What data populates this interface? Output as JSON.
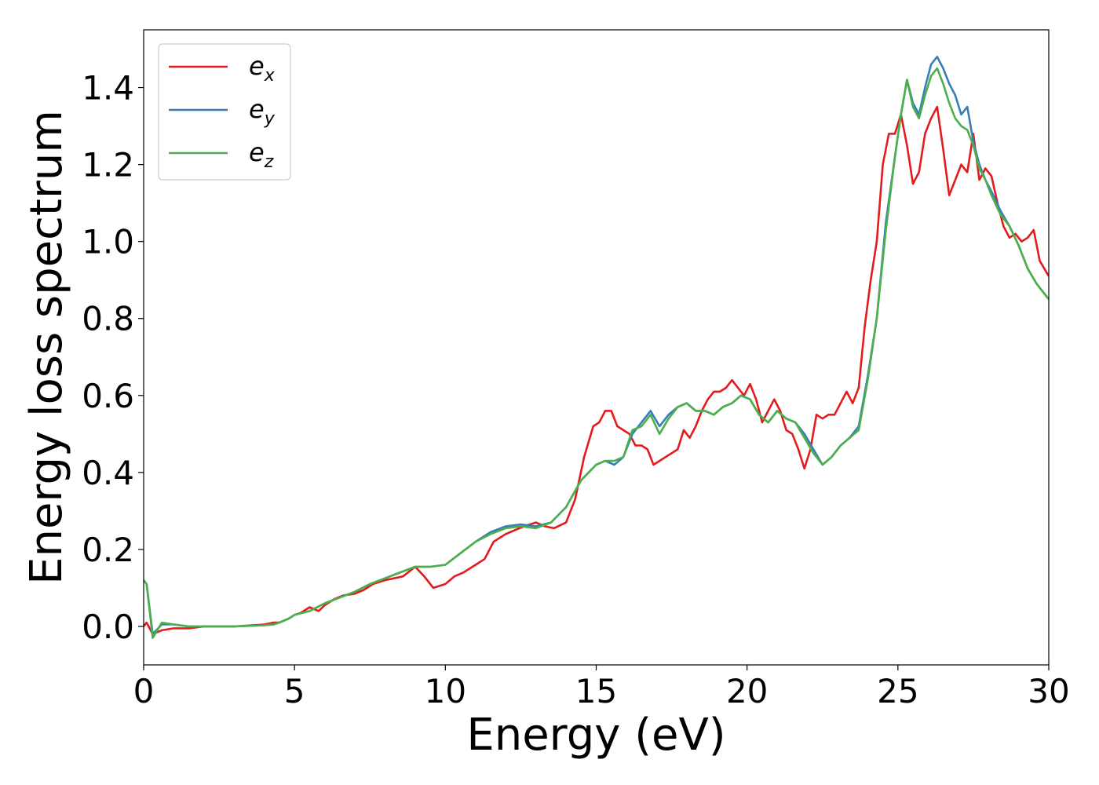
{
  "chart_data": {
    "type": "line",
    "xlabel": "Energy (eV)",
    "ylabel": "Energy loss spectrum",
    "xlim": [
      0,
      30
    ],
    "ylim": [
      -0.1,
      1.55
    ],
    "xticks": [
      0,
      5,
      10,
      15,
      20,
      25,
      30
    ],
    "xtick_labels": [
      "0",
      "5",
      "10",
      "15",
      "20",
      "25",
      "30"
    ],
    "yticks": [
      0.0,
      0.2,
      0.4,
      0.6,
      0.8,
      1.0,
      1.2,
      1.4
    ],
    "ytick_labels": [
      "0.0",
      "0.2",
      "0.4",
      "0.6",
      "0.8",
      "1.0",
      "1.2",
      "1.4"
    ],
    "grid": false,
    "legend_position": "top-left",
    "series": [
      {
        "name": "e_x",
        "label_base": "e",
        "label_sub": "x",
        "color": "#e41a1c",
        "x": [
          0,
          0.1,
          0.3,
          0.6,
          1.0,
          1.5,
          2,
          3,
          4,
          4.3,
          4.5,
          4.8,
          5.0,
          5.2,
          5.5,
          5.8,
          6.0,
          6.3,
          6.6,
          7.0,
          7.3,
          7.6,
          8.0,
          8.3,
          8.6,
          9.0,
          9.3,
          9.6,
          10.0,
          10.3,
          10.6,
          11.0,
          11.3,
          11.6,
          12.0,
          12.3,
          12.6,
          13.0,
          13.3,
          13.6,
          14.0,
          14.3,
          14.6,
          14.9,
          15.1,
          15.3,
          15.5,
          15.7,
          15.9,
          16.1,
          16.3,
          16.5,
          16.7,
          16.9,
          17.1,
          17.3,
          17.5,
          17.7,
          17.9,
          18.1,
          18.3,
          18.5,
          18.7,
          18.9,
          19.1,
          19.3,
          19.5,
          19.7,
          19.9,
          20.1,
          20.3,
          20.5,
          20.7,
          20.9,
          21.1,
          21.3,
          21.5,
          21.7,
          21.9,
          22.1,
          22.3,
          22.5,
          22.7,
          22.9,
          23.1,
          23.3,
          23.5,
          23.7,
          23.9,
          24.1,
          24.3,
          24.5,
          24.7,
          24.9,
          25.1,
          25.3,
          25.5,
          25.7,
          25.9,
          26.1,
          26.3,
          26.5,
          26.7,
          26.9,
          27.1,
          27.3,
          27.5,
          27.7,
          27.9,
          28.1,
          28.3,
          28.5,
          28.7,
          28.9,
          29.1,
          29.3,
          29.5,
          29.7,
          30.0
        ],
        "y": [
          0.0,
          0.01,
          -0.02,
          -0.01,
          -0.005,
          -0.005,
          0.0,
          0.0,
          0.005,
          0.01,
          0.01,
          0.02,
          0.03,
          0.035,
          0.05,
          0.04,
          0.055,
          0.07,
          0.08,
          0.085,
          0.095,
          0.11,
          0.12,
          0.125,
          0.13,
          0.155,
          0.13,
          0.1,
          0.11,
          0.13,
          0.14,
          0.16,
          0.175,
          0.22,
          0.24,
          0.25,
          0.26,
          0.27,
          0.26,
          0.255,
          0.27,
          0.33,
          0.44,
          0.52,
          0.53,
          0.56,
          0.56,
          0.52,
          0.51,
          0.5,
          0.47,
          0.47,
          0.46,
          0.42,
          0.43,
          0.44,
          0.45,
          0.46,
          0.51,
          0.49,
          0.52,
          0.56,
          0.59,
          0.61,
          0.61,
          0.62,
          0.64,
          0.62,
          0.6,
          0.63,
          0.59,
          0.53,
          0.56,
          0.59,
          0.56,
          0.51,
          0.5,
          0.46,
          0.41,
          0.46,
          0.55,
          0.54,
          0.55,
          0.55,
          0.58,
          0.61,
          0.58,
          0.62,
          0.78,
          0.9,
          1.0,
          1.2,
          1.28,
          1.28,
          1.33,
          1.25,
          1.15,
          1.18,
          1.28,
          1.32,
          1.35,
          1.24,
          1.12,
          1.16,
          1.2,
          1.18,
          1.28,
          1.16,
          1.19,
          1.17,
          1.1,
          1.04,
          1.01,
          1.02,
          1.0,
          1.01,
          1.03,
          0.95,
          0.91
        ]
      },
      {
        "name": "e_y",
        "label_base": "e",
        "label_sub": "y",
        "color": "#377eb8",
        "x": [
          0,
          0.1,
          0.3,
          0.6,
          1.0,
          1.5,
          2,
          3,
          4,
          4.3,
          4.5,
          4.8,
          5.0,
          5.5,
          6.0,
          6.5,
          7.0,
          7.5,
          8.0,
          8.5,
          9.0,
          9.5,
          10.0,
          10.5,
          11.0,
          11.5,
          12.0,
          12.5,
          13.0,
          13.5,
          14.0,
          14.5,
          15.0,
          15.3,
          15.6,
          15.9,
          16.2,
          16.5,
          16.8,
          17.1,
          17.4,
          17.7,
          18.0,
          18.3,
          18.6,
          18.9,
          19.2,
          19.5,
          19.8,
          20.1,
          20.4,
          20.7,
          21.0,
          21.3,
          21.6,
          21.9,
          22.2,
          22.5,
          22.8,
          23.1,
          23.4,
          23.7,
          24.0,
          24.3,
          24.6,
          24.9,
          25.1,
          25.3,
          25.5,
          25.7,
          25.9,
          26.1,
          26.3,
          26.5,
          26.7,
          26.9,
          27.1,
          27.3,
          27.5,
          27.7,
          27.9,
          28.1,
          28.4,
          28.7,
          29.0,
          29.3,
          29.6,
          30.0
        ],
        "y": [
          0.12,
          0.11,
          -0.02,
          0.005,
          0.005,
          0.0,
          0.0,
          0.0,
          0.003,
          0.005,
          0.01,
          0.02,
          0.03,
          0.04,
          0.06,
          0.075,
          0.09,
          0.11,
          0.125,
          0.14,
          0.155,
          0.155,
          0.16,
          0.19,
          0.22,
          0.245,
          0.26,
          0.265,
          0.26,
          0.27,
          0.31,
          0.38,
          0.42,
          0.43,
          0.42,
          0.44,
          0.5,
          0.53,
          0.56,
          0.52,
          0.55,
          0.57,
          0.58,
          0.56,
          0.56,
          0.55,
          0.57,
          0.58,
          0.6,
          0.59,
          0.55,
          0.53,
          0.56,
          0.54,
          0.53,
          0.5,
          0.46,
          0.42,
          0.44,
          0.47,
          0.49,
          0.52,
          0.65,
          0.8,
          1.05,
          1.22,
          1.33,
          1.42,
          1.36,
          1.33,
          1.4,
          1.46,
          1.48,
          1.45,
          1.41,
          1.38,
          1.33,
          1.35,
          1.26,
          1.2,
          1.16,
          1.13,
          1.08,
          1.04,
          0.99,
          0.93,
          0.89,
          0.85
        ]
      },
      {
        "name": "e_z",
        "label_base": "e",
        "label_sub": "z",
        "color": "#4daf4a",
        "x": [
          0,
          0.1,
          0.3,
          0.6,
          1.0,
          1.5,
          2,
          3,
          4,
          4.3,
          4.5,
          4.8,
          5.0,
          5.5,
          6.0,
          6.5,
          7.0,
          7.5,
          8.0,
          8.5,
          9.0,
          9.5,
          10.0,
          10.5,
          11.0,
          11.5,
          12.0,
          12.5,
          13.0,
          13.5,
          14.0,
          14.5,
          15.0,
          15.3,
          15.6,
          15.9,
          16.2,
          16.5,
          16.8,
          17.1,
          17.4,
          17.7,
          18.0,
          18.3,
          18.6,
          18.9,
          19.2,
          19.5,
          19.8,
          20.1,
          20.4,
          20.7,
          21.0,
          21.3,
          21.6,
          21.9,
          22.2,
          22.5,
          22.8,
          23.1,
          23.4,
          23.7,
          24.0,
          24.3,
          24.6,
          24.9,
          25.1,
          25.3,
          25.5,
          25.7,
          25.9,
          26.1,
          26.3,
          26.5,
          26.7,
          26.9,
          27.1,
          27.3,
          27.5,
          27.7,
          27.9,
          28.1,
          28.4,
          28.7,
          29.0,
          29.3,
          29.6,
          30.0
        ],
        "y": [
          0.12,
          0.11,
          -0.03,
          0.01,
          0.005,
          0.0,
          0.0,
          0.0,
          0.003,
          0.005,
          0.01,
          0.02,
          0.03,
          0.04,
          0.06,
          0.075,
          0.09,
          0.11,
          0.125,
          0.14,
          0.155,
          0.155,
          0.16,
          0.19,
          0.22,
          0.24,
          0.255,
          0.26,
          0.255,
          0.27,
          0.31,
          0.38,
          0.42,
          0.43,
          0.43,
          0.44,
          0.51,
          0.52,
          0.55,
          0.5,
          0.54,
          0.57,
          0.58,
          0.56,
          0.56,
          0.55,
          0.57,
          0.58,
          0.6,
          0.59,
          0.55,
          0.53,
          0.56,
          0.54,
          0.53,
          0.49,
          0.45,
          0.42,
          0.44,
          0.47,
          0.49,
          0.51,
          0.64,
          0.8,
          1.03,
          1.22,
          1.33,
          1.42,
          1.35,
          1.32,
          1.38,
          1.43,
          1.45,
          1.41,
          1.36,
          1.32,
          1.3,
          1.29,
          1.25,
          1.19,
          1.16,
          1.12,
          1.07,
          1.04,
          0.99,
          0.93,
          0.89,
          0.85
        ]
      }
    ]
  }
}
